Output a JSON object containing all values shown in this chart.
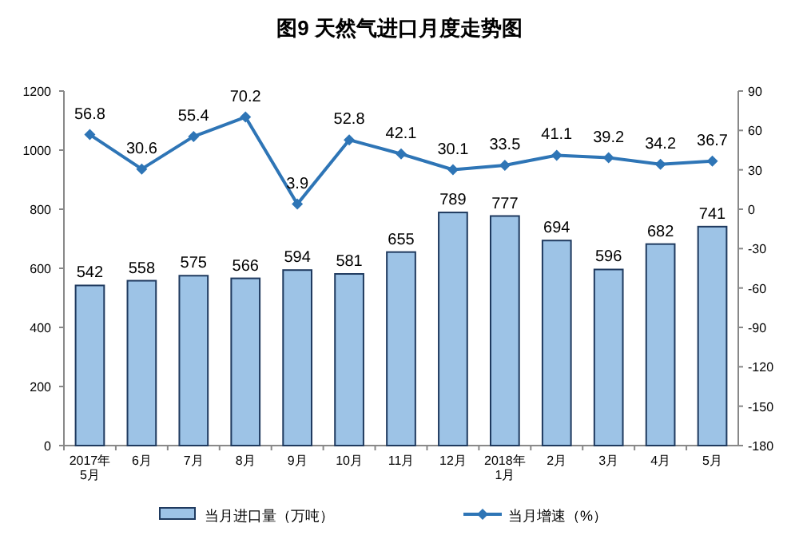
{
  "chart_data": {
    "type": "bar",
    "title": "图9 天然气进口月度走势图",
    "categories": [
      "2017年\n5月",
      "6月",
      "7月",
      "8月",
      "9月",
      "10月",
      "11月",
      "12月",
      "2018年\n1月",
      "2月",
      "3月",
      "4月",
      "5月"
    ],
    "series": [
      {
        "name": "当月进口量（万吨）",
        "color": "#9dc3e6",
        "values": [
          542,
          558,
          575,
          566,
          594,
          581,
          655,
          789,
          777,
          694,
          596,
          682,
          741
        ]
      },
      {
        "name": "当月增速（%）",
        "type": "line",
        "axis": "y2",
        "color": "#2e75b6",
        "marker": "diamond",
        "values": [
          56.8,
          30.6,
          55.4,
          70.2,
          3.9,
          52.8,
          42.1,
          30.1,
          33.5,
          41.1,
          39.2,
          34.2,
          36.7
        ]
      }
    ],
    "ylim": [
      0,
      1200
    ],
    "yticks": [
      0,
      200,
      400,
      600,
      800,
      1000,
      1200
    ],
    "y2lim": [
      -180,
      90
    ],
    "y2ticks": [
      -180,
      -150,
      -120,
      -90,
      -60,
      -30,
      0,
      30,
      60,
      90
    ],
    "data_labels": true,
    "legend": "bottom",
    "grid": false
  }
}
